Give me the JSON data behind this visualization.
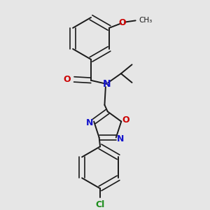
{
  "background_color": "#e6e6e6",
  "bond_color": "#1a1a1a",
  "nitrogen_color": "#1414cc",
  "oxygen_color": "#cc0000",
  "chlorine_color": "#1a8c1a",
  "figsize": [
    3.0,
    3.0
  ],
  "dpi": 100,
  "xlim": [
    0,
    10
  ],
  "ylim": [
    0,
    10
  ]
}
